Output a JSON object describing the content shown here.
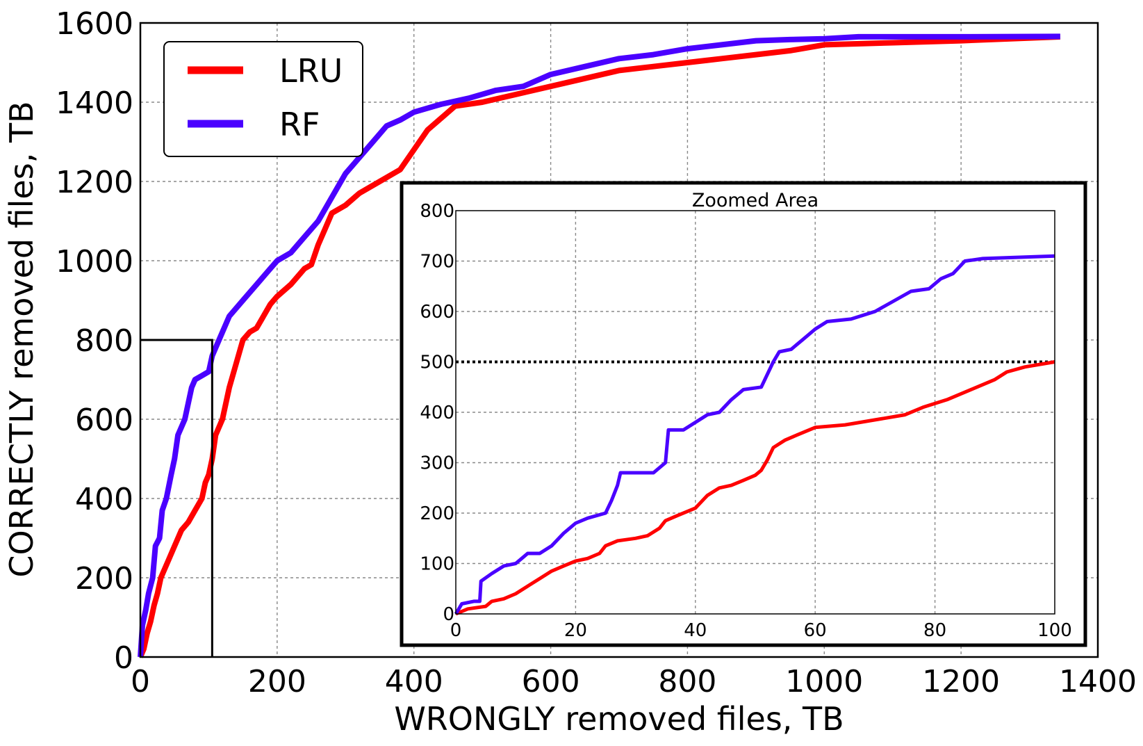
{
  "chart_data": [
    {
      "type": "line",
      "title": "",
      "xlabel": "WRONGLY removed files, TB",
      "ylabel": "CORRECTLY removed files, TB",
      "xlim": [
        0,
        1400
      ],
      "ylim": [
        0,
        1600
      ],
      "xticks": [
        0,
        200,
        400,
        600,
        800,
        1000,
        1200,
        1400
      ],
      "yticks": [
        0,
        200,
        400,
        600,
        800,
        1000,
        1200,
        1400,
        1600
      ],
      "grid": true,
      "legend_position": "top-left",
      "zoom_box": {
        "x": [
          0,
          105
        ],
        "y": [
          0,
          800
        ]
      },
      "series": [
        {
          "name": "LRU",
          "color": "#ff0000",
          "points": [
            [
              0,
              0
            ],
            [
              5,
              20
            ],
            [
              10,
              60
            ],
            [
              15,
              90
            ],
            [
              20,
              130
            ],
            [
              25,
              160
            ],
            [
              30,
              200
            ],
            [
              40,
              240
            ],
            [
              50,
              280
            ],
            [
              60,
              320
            ],
            [
              70,
              340
            ],
            [
              80,
              370
            ],
            [
              90,
              400
            ],
            [
              95,
              440
            ],
            [
              100,
              460
            ],
            [
              105,
              500
            ],
            [
              110,
              560
            ],
            [
              120,
              600
            ],
            [
              130,
              680
            ],
            [
              140,
              740
            ],
            [
              150,
              800
            ],
            [
              160,
              820
            ],
            [
              170,
              830
            ],
            [
              180,
              860
            ],
            [
              190,
              890
            ],
            [
              200,
              910
            ],
            [
              220,
              940
            ],
            [
              240,
              980
            ],
            [
              250,
              990
            ],
            [
              260,
              1040
            ],
            [
              270,
              1080
            ],
            [
              280,
              1120
            ],
            [
              300,
              1140
            ],
            [
              320,
              1170
            ],
            [
              350,
              1200
            ],
            [
              380,
              1230
            ],
            [
              400,
              1280
            ],
            [
              420,
              1330
            ],
            [
              440,
              1360
            ],
            [
              460,
              1390
            ],
            [
              500,
              1400
            ],
            [
              550,
              1420
            ],
            [
              600,
              1440
            ],
            [
              650,
              1460
            ],
            [
              700,
              1480
            ],
            [
              750,
              1490
            ],
            [
              800,
              1500
            ],
            [
              850,
              1510
            ],
            [
              900,
              1520
            ],
            [
              950,
              1530
            ],
            [
              1000,
              1545
            ],
            [
              1100,
              1550
            ],
            [
              1200,
              1555
            ],
            [
              1345,
              1565
            ]
          ]
        },
        {
          "name": "RF",
          "color": "#4a00ff",
          "points": [
            [
              0,
              0
            ],
            [
              3,
              80
            ],
            [
              8,
              120
            ],
            [
              12,
              160
            ],
            [
              18,
              200
            ],
            [
              22,
              280
            ],
            [
              28,
              300
            ],
            [
              32,
              370
            ],
            [
              38,
              400
            ],
            [
              45,
              460
            ],
            [
              50,
              500
            ],
            [
              55,
              560
            ],
            [
              60,
              580
            ],
            [
              65,
              600
            ],
            [
              70,
              640
            ],
            [
              75,
              680
            ],
            [
              80,
              700
            ],
            [
              90,
              710
            ],
            [
              100,
              720
            ],
            [
              105,
              760
            ],
            [
              115,
              800
            ],
            [
              130,
              860
            ],
            [
              150,
              900
            ],
            [
              170,
              940
            ],
            [
              190,
              980
            ],
            [
              200,
              1000
            ],
            [
              220,
              1020
            ],
            [
              240,
              1060
            ],
            [
              260,
              1100
            ],
            [
              280,
              1160
            ],
            [
              300,
              1220
            ],
            [
              320,
              1260
            ],
            [
              340,
              1300
            ],
            [
              360,
              1340
            ],
            [
              380,
              1355
            ],
            [
              400,
              1375
            ],
            [
              440,
              1395
            ],
            [
              480,
              1410
            ],
            [
              520,
              1430
            ],
            [
              560,
              1440
            ],
            [
              600,
              1470
            ],
            [
              650,
              1490
            ],
            [
              700,
              1510
            ],
            [
              750,
              1520
            ],
            [
              800,
              1535
            ],
            [
              850,
              1545
            ],
            [
              900,
              1555
            ],
            [
              950,
              1558
            ],
            [
              1000,
              1560
            ],
            [
              1050,
              1565
            ],
            [
              1200,
              1565
            ],
            [
              1345,
              1566
            ]
          ]
        }
      ]
    },
    {
      "type": "line",
      "title": "Zoomed Area",
      "xlabel": "",
      "ylabel": "",
      "xlim": [
        0,
        100
      ],
      "ylim": [
        0,
        800
      ],
      "xticks": [
        0,
        20,
        40,
        60,
        80,
        100
      ],
      "yticks": [
        0,
        100,
        200,
        300,
        400,
        500,
        600,
        700,
        800
      ],
      "grid": true,
      "reference_line": {
        "y": 500,
        "style": "dotted",
        "color": "#000000"
      },
      "series": [
        {
          "name": "LRU",
          "color": "#ff0000",
          "points": [
            [
              0,
              0
            ],
            [
              2,
              10
            ],
            [
              5,
              15
            ],
            [
              6,
              25
            ],
            [
              8,
              30
            ],
            [
              10,
              40
            ],
            [
              12,
              55
            ],
            [
              14,
              70
            ],
            [
              16,
              85
            ],
            [
              18,
              95
            ],
            [
              20,
              105
            ],
            [
              22,
              110
            ],
            [
              24,
              120
            ],
            [
              25,
              135
            ],
            [
              27,
              145
            ],
            [
              30,
              150
            ],
            [
              32,
              155
            ],
            [
              34,
              170
            ],
            [
              35,
              185
            ],
            [
              37,
              195
            ],
            [
              40,
              210
            ],
            [
              42,
              235
            ],
            [
              44,
              250
            ],
            [
              46,
              255
            ],
            [
              48,
              265
            ],
            [
              50,
              275
            ],
            [
              51,
              285
            ],
            [
              52,
              305
            ],
            [
              53,
              330
            ],
            [
              55,
              345
            ],
            [
              57,
              355
            ],
            [
              60,
              370
            ],
            [
              65,
              375
            ],
            [
              70,
              385
            ],
            [
              75,
              395
            ],
            [
              78,
              410
            ],
            [
              82,
              425
            ],
            [
              86,
              445
            ],
            [
              90,
              465
            ],
            [
              92,
              480
            ],
            [
              95,
              490
            ],
            [
              100,
              500
            ]
          ]
        },
        {
          "name": "RF",
          "color": "#4a00ff",
          "points": [
            [
              0,
              0
            ],
            [
              0.5,
              10
            ],
            [
              1,
              20
            ],
            [
              3,
              25
            ],
            [
              4,
              25
            ],
            [
              4.2,
              65
            ],
            [
              6,
              80
            ],
            [
              8,
              95
            ],
            [
              10,
              100
            ],
            [
              11,
              110
            ],
            [
              12,
              120
            ],
            [
              14,
              120
            ],
            [
              16,
              135
            ],
            [
              18,
              160
            ],
            [
              20,
              180
            ],
            [
              22,
              190
            ],
            [
              25,
              200
            ],
            [
              26,
              225
            ],
            [
              27,
              255
            ],
            [
              27.5,
              280
            ],
            [
              33,
              280
            ],
            [
              35,
              300
            ],
            [
              35.5,
              365
            ],
            [
              38,
              365
            ],
            [
              40,
              380
            ],
            [
              42,
              395
            ],
            [
              44,
              400
            ],
            [
              46,
              425
            ],
            [
              48,
              445
            ],
            [
              51,
              450
            ],
            [
              53,
              500
            ],
            [
              54,
              520
            ],
            [
              56,
              525
            ],
            [
              58,
              545
            ],
            [
              60,
              565
            ],
            [
              62,
              580
            ],
            [
              66,
              585
            ],
            [
              70,
              600
            ],
            [
              73,
              620
            ],
            [
              76,
              640
            ],
            [
              79,
              645
            ],
            [
              81,
              665
            ],
            [
              83,
              675
            ],
            [
              85,
              700
            ],
            [
              88,
              705
            ],
            [
              100,
              710
            ]
          ]
        }
      ]
    }
  ]
}
